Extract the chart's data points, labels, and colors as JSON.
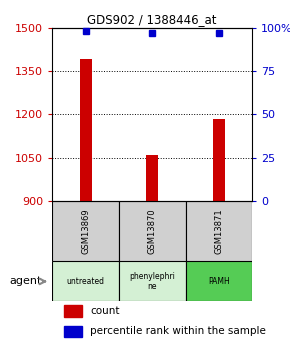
{
  "title": "GDS902 / 1388446_at",
  "samples": [
    "GSM13869",
    "GSM13870",
    "GSM13871"
  ],
  "agents": [
    "untreated",
    "phenylephri\nne",
    "PAMH"
  ],
  "agent_colors": [
    "#d4f0d4",
    "#d4f0d4",
    "#55cc55"
  ],
  "count_values": [
    1390,
    1060,
    1185
  ],
  "percentile_values": [
    98,
    97,
    97
  ],
  "ylim_left": [
    900,
    1500
  ],
  "ylim_right": [
    0,
    100
  ],
  "yticks_left": [
    900,
    1050,
    1200,
    1350,
    1500
  ],
  "yticks_right": [
    0,
    25,
    50,
    75,
    100
  ],
  "ytick_labels_right": [
    "0",
    "25",
    "50",
    "75",
    "100%"
  ],
  "bar_color": "#cc0000",
  "dot_color": "#0000cc",
  "bar_width": 0.18,
  "left_tick_color": "#cc0000",
  "right_tick_color": "#0000cc",
  "sample_box_color": "#d0d0d0",
  "agent_label": "agent",
  "gridline_ticks": [
    1050,
    1200,
    1350
  ]
}
